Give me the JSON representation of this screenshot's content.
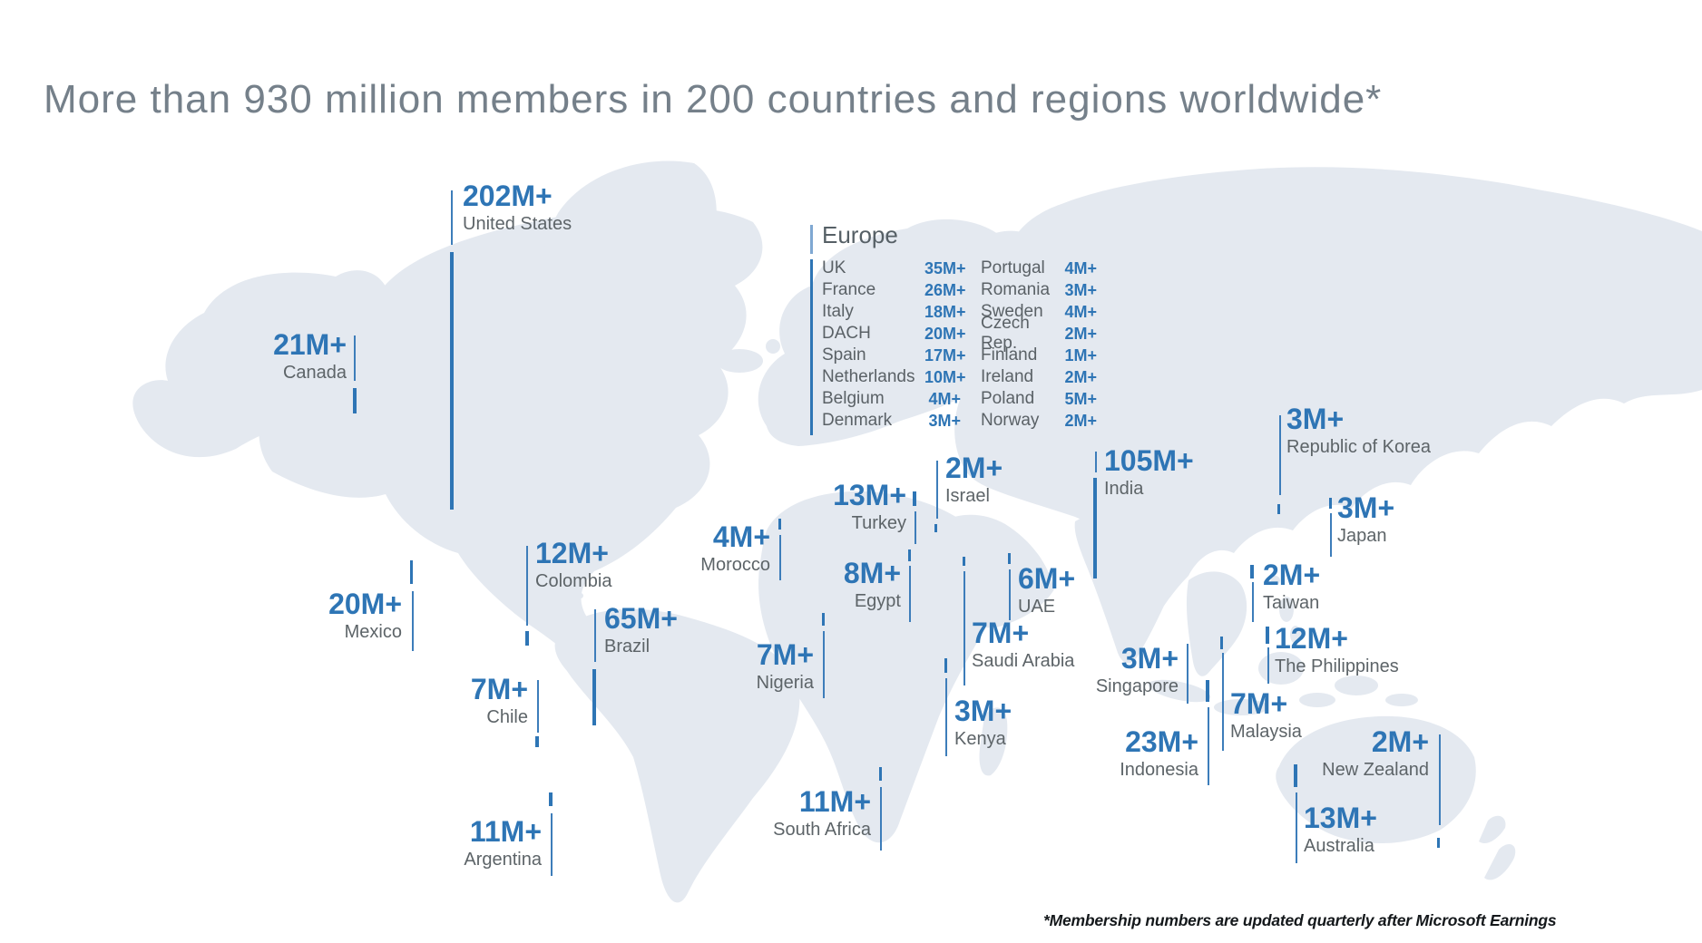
{
  "title": "More than 930 million members in 200 countries and regions worldwide*",
  "footnote": "*Membership numbers are updated quarterly after Microsoft Earnings",
  "colors": {
    "accent_blue": "#2E75B5",
    "thin_line_blue": "#3D7DBA",
    "country_gray": "#5D6468",
    "title_gray": "#75808A",
    "map_land": "#E4E9F0"
  },
  "europe_panel": {
    "header": "Europe",
    "col1": [
      {
        "country": "UK",
        "value": "35M+"
      },
      {
        "country": "France",
        "value": "26M+"
      },
      {
        "country": "Italy",
        "value": "18M+"
      },
      {
        "country": "DACH",
        "value": "20M+"
      },
      {
        "country": "Spain",
        "value": "17M+"
      },
      {
        "country": "Netherlands",
        "value": "10M+"
      },
      {
        "country": "Belgium",
        "value": "4M+"
      },
      {
        "country": "Denmark",
        "value": "3M+"
      }
    ],
    "col2": [
      {
        "country": "Portugal",
        "value": "4M+"
      },
      {
        "country": "Romania",
        "value": "3M+"
      },
      {
        "country": "Sweden",
        "value": "4M+"
      },
      {
        "country": "Czech Rep.",
        "value": "2M+"
      },
      {
        "country": "Finland",
        "value": "1M+"
      },
      {
        "country": "Ireland",
        "value": "2M+"
      },
      {
        "country": "Poland",
        "value": "5M+"
      },
      {
        "country": "Norway",
        "value": "2M+"
      }
    ]
  },
  "map_labels": [
    {
      "id": "us",
      "value": "202M+",
      "name": "United States"
    },
    {
      "id": "canada",
      "value": "21M+",
      "name": "Canada"
    },
    {
      "id": "mexico",
      "value": "20M+",
      "name": "Mexico"
    },
    {
      "id": "colombia",
      "value": "12M+",
      "name": "Colombia"
    },
    {
      "id": "brazil",
      "value": "65M+",
      "name": "Brazil"
    },
    {
      "id": "chile",
      "value": "7M+",
      "name": "Chile"
    },
    {
      "id": "argentina",
      "value": "11M+",
      "name": "Argentina"
    },
    {
      "id": "morocco",
      "value": "4M+",
      "name": "Morocco"
    },
    {
      "id": "turkey",
      "value": "13M+",
      "name": "Turkey"
    },
    {
      "id": "israel",
      "value": "2M+",
      "name": "Israel"
    },
    {
      "id": "egypt",
      "value": "8M+",
      "name": "Egypt"
    },
    {
      "id": "uae",
      "value": "6M+",
      "name": "UAE"
    },
    {
      "id": "saudi",
      "value": "7M+",
      "name": "Saudi Arabia"
    },
    {
      "id": "nigeria",
      "value": "7M+",
      "name": "Nigeria"
    },
    {
      "id": "kenya",
      "value": "3M+",
      "name": "Kenya"
    },
    {
      "id": "southafrica",
      "value": "11M+",
      "name": "South Africa"
    },
    {
      "id": "india",
      "value": "105M+",
      "name": "India"
    },
    {
      "id": "korea",
      "value": "3M+",
      "name": "Republic of Korea"
    },
    {
      "id": "japan",
      "value": "3M+",
      "name": "Japan"
    },
    {
      "id": "taiwan",
      "value": "2M+",
      "name": "Taiwan"
    },
    {
      "id": "philippines",
      "value": "12M+",
      "name": "The Philippines"
    },
    {
      "id": "singapore",
      "value": "3M+",
      "name": "Singapore"
    },
    {
      "id": "malaysia",
      "value": "7M+",
      "name": "Malaysia"
    },
    {
      "id": "indonesia",
      "value": "23M+",
      "name": "Indonesia"
    },
    {
      "id": "newzealand",
      "value": "2M+",
      "name": "New Zealand"
    },
    {
      "id": "australia",
      "value": "13M+",
      "name": "Australia"
    }
  ]
}
